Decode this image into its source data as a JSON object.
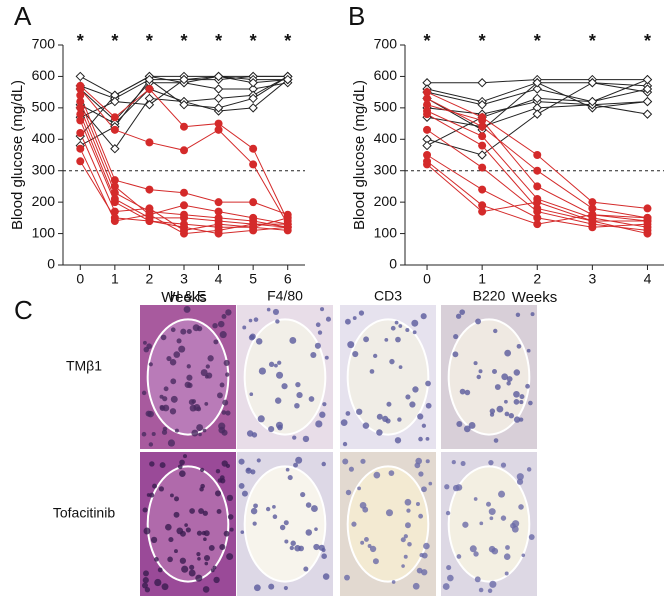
{
  "chart_data": [
    {
      "type": "line",
      "panel": "A",
      "xlabel": "Weeks",
      "ylabel": "Blood glucose (mg/dL)",
      "x": [
        0,
        1,
        2,
        3,
        4,
        5,
        6
      ],
      "xlim": [
        -0.5,
        6.5
      ],
      "xticks": [
        0,
        1,
        2,
        3,
        4,
        5,
        6
      ],
      "ylim": [
        0,
        700
      ],
      "yticks": [
        0,
        100,
        200,
        300,
        400,
        500,
        600,
        700
      ],
      "reference_line": 300,
      "annotations": [
        {
          "x": 0,
          "label": "*"
        },
        {
          "x": 1,
          "label": "*"
        },
        {
          "x": 2,
          "label": "*"
        },
        {
          "x": 3,
          "label": "*"
        },
        {
          "x": 4,
          "label": "*"
        },
        {
          "x": 5,
          "label": "*"
        },
        {
          "x": 6,
          "label": "*"
        }
      ],
      "series": [
        {
          "color": "#222222",
          "marker": "diamond",
          "values": [
            600,
            540,
            600,
            600,
            600,
            600,
            600
          ]
        },
        {
          "color": "#222222",
          "marker": "diamond",
          "values": [
            570,
            530,
            590,
            590,
            590,
            600,
            600
          ]
        },
        {
          "color": "#222222",
          "marker": "diamond",
          "values": [
            560,
            460,
            580,
            580,
            560,
            560,
            580
          ]
        },
        {
          "color": "#222222",
          "marker": "diamond",
          "values": [
            510,
            450,
            560,
            520,
            530,
            540,
            600
          ]
        },
        {
          "color": "#222222",
          "marker": "diamond",
          "values": [
            500,
            370,
            530,
            520,
            490,
            500,
            590
          ]
        },
        {
          "color": "#222222",
          "marker": "diamond",
          "values": [
            410,
            540,
            600,
            580,
            600,
            590,
            590
          ]
        },
        {
          "color": "#222222",
          "marker": "diamond",
          "values": [
            380,
            440,
            590,
            510,
            500,
            530,
            600
          ]
        },
        {
          "color": "#222222",
          "marker": "diamond",
          "values": [
            470,
            520,
            510,
            590,
            600,
            580,
            590
          ]
        },
        {
          "color": "#d42a2a",
          "marker": "circle",
          "values": [
            570,
            470,
            560,
            440,
            450,
            370,
            140
          ]
        },
        {
          "color": "#d42a2a",
          "marker": "circle",
          "values": [
            560,
            430,
            390,
            365,
            430,
            320,
            130
          ]
        },
        {
          "color": "#d42a2a",
          "marker": "circle",
          "values": [
            540,
            270,
            240,
            230,
            200,
            200,
            160
          ]
        },
        {
          "color": "#d42a2a",
          "marker": "circle",
          "values": [
            520,
            250,
            160,
            190,
            170,
            150,
            130
          ]
        },
        {
          "color": "#d42a2a",
          "marker": "circle",
          "values": [
            500,
            230,
            170,
            160,
            150,
            140,
            120
          ]
        },
        {
          "color": "#d42a2a",
          "marker": "circle",
          "values": [
            480,
            210,
            150,
            150,
            140,
            130,
            120
          ]
        },
        {
          "color": "#d42a2a",
          "marker": "circle",
          "values": [
            460,
            200,
            140,
            130,
            120,
            120,
            150
          ]
        },
        {
          "color": "#d42a2a",
          "marker": "circle",
          "values": [
            420,
            170,
            180,
            110,
            130,
            120,
            110
          ]
        },
        {
          "color": "#d42a2a",
          "marker": "circle",
          "values": [
            370,
            140,
            160,
            100,
            110,
            130,
            130
          ]
        },
        {
          "color": "#d42a2a",
          "marker": "circle",
          "values": [
            330,
            150,
            140,
            120,
            100,
            110,
            120
          ]
        }
      ]
    },
    {
      "type": "line",
      "panel": "B",
      "xlabel": "Weeks",
      "ylabel": "Blood glucose (mg/dL)",
      "x": [
        0,
        1,
        2,
        3,
        4
      ],
      "xlim": [
        -0.4,
        4.3
      ],
      "xticks": [
        0,
        1,
        2,
        3,
        4
      ],
      "ylim": [
        0,
        700
      ],
      "yticks": [
        0,
        100,
        200,
        300,
        400,
        500,
        600,
        700
      ],
      "reference_line": 300,
      "annotations": [
        {
          "x": 0,
          "label": "*"
        },
        {
          "x": 1,
          "label": "*"
        },
        {
          "x": 2,
          "label": "*"
        },
        {
          "x": 3,
          "label": "*"
        },
        {
          "x": 4,
          "label": "*"
        }
      ],
      "series": [
        {
          "color": "#222222",
          "marker": "diamond",
          "values": [
            580,
            580,
            590,
            590,
            590
          ]
        },
        {
          "color": "#222222",
          "marker": "diamond",
          "values": [
            560,
            520,
            580,
            580,
            570
          ]
        },
        {
          "color": "#222222",
          "marker": "diamond",
          "values": [
            550,
            510,
            560,
            520,
            590
          ]
        },
        {
          "color": "#222222",
          "marker": "diamond",
          "values": [
            530,
            430,
            580,
            500,
            520
          ]
        },
        {
          "color": "#222222",
          "marker": "diamond",
          "values": [
            500,
            480,
            520,
            510,
            480
          ]
        },
        {
          "color": "#222222",
          "marker": "diamond",
          "values": [
            470,
            440,
            500,
            510,
            520
          ]
        },
        {
          "color": "#222222",
          "marker": "diamond",
          "values": [
            400,
            350,
            480,
            580,
            550
          ]
        },
        {
          "color": "#222222",
          "marker": "diamond",
          "values": [
            380,
            470,
            530,
            520,
            560
          ]
        },
        {
          "color": "#d42a2a",
          "marker": "circle",
          "values": [
            550,
            470,
            350,
            200,
            180
          ]
        },
        {
          "color": "#d42a2a",
          "marker": "circle",
          "values": [
            530,
            440,
            300,
            180,
            150
          ]
        },
        {
          "color": "#d42a2a",
          "marker": "circle",
          "values": [
            510,
            460,
            250,
            160,
            140
          ]
        },
        {
          "color": "#d42a2a",
          "marker": "circle",
          "values": [
            490,
            410,
            210,
            150,
            120
          ]
        },
        {
          "color": "#d42a2a",
          "marker": "circle",
          "values": [
            480,
            380,
            180,
            140,
            100
          ]
        },
        {
          "color": "#d42a2a",
          "marker": "circle",
          "values": [
            430,
            310,
            170,
            130,
            110
          ]
        },
        {
          "color": "#d42a2a",
          "marker": "circle",
          "values": [
            350,
            240,
            150,
            120,
            130
          ]
        },
        {
          "color": "#d42a2a",
          "marker": "circle",
          "values": [
            330,
            190,
            130,
            160,
            150
          ]
        },
        {
          "color": "#d42a2a",
          "marker": "circle",
          "values": [
            320,
            170,
            200,
            140,
            140
          ]
        }
      ]
    }
  ],
  "histology": {
    "panel": "C",
    "columns": [
      "H & E",
      "F4/80",
      "CD3",
      "B220"
    ],
    "rows": [
      "TMβ1",
      "Tofacitinib"
    ]
  }
}
